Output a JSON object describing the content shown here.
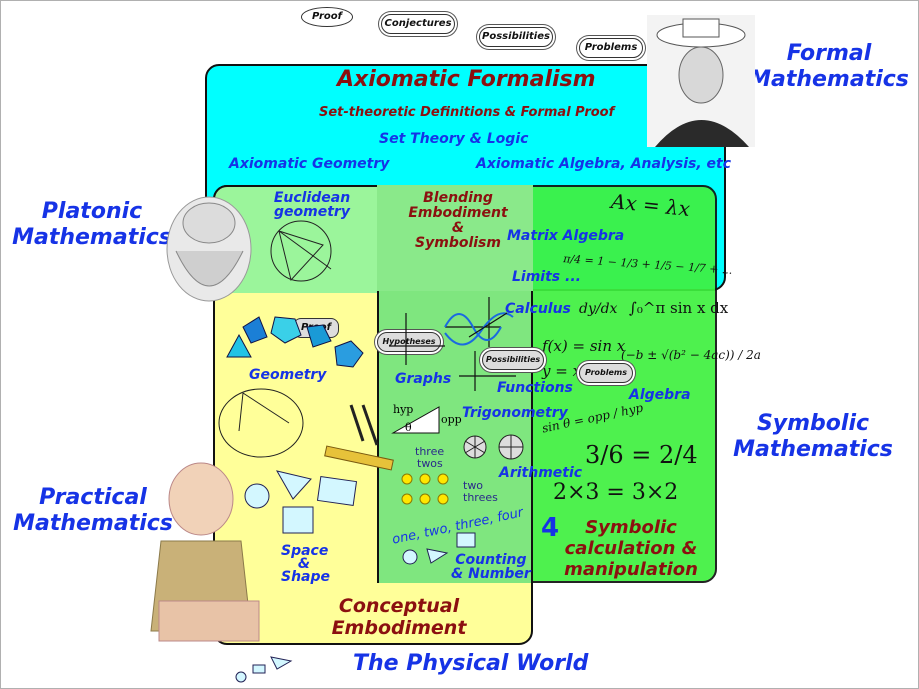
{
  "top_bubbles": [
    "Proof",
    "Conjectures",
    "Possibilities",
    "Problems"
  ],
  "worlds": {
    "formal": [
      "Formal",
      "Mathematics"
    ],
    "platonic": [
      "Platonic",
      "Mathematics"
    ],
    "symbolic": [
      "Symbolic",
      "Mathematics"
    ],
    "practical": [
      "Practical",
      "Mathematics"
    ],
    "physical": "The Physical World"
  },
  "formal_box": {
    "title": "Axiomatic Formalism",
    "line1": "Set-theoretic Definitions & Formal Proof",
    "line2": "Set Theory & Logic",
    "left": "Axiomatic Geometry",
    "right": "Axiomatic Algebra, Analysis, etc"
  },
  "blending": [
    "Blending",
    "Embodiment",
    "&",
    "Symbolism"
  ],
  "euclidean": [
    "Euclidean",
    "geometry"
  ],
  "symbolic_items": {
    "eigen": "Ax = λx",
    "matrix": "Matrix Algebra",
    "limits": "Limits ...",
    "series": "π/4 = 1 − 1/3 + 1/5 − 1/7 + ...",
    "calculus": "Calculus",
    "functions": "Functions",
    "algebra": "Algebra",
    "trig": "Trigonometry",
    "arithmetic": "Arithmetic",
    "counting": [
      "Counting",
      "& Number"
    ],
    "dydx": "dy/dx",
    "integral": "∫₀^π sin x dx",
    "fx": "f(x) = sin x",
    "yx": "y = x",
    "quad": "(−b ± √(b² − 4ac)) / 2a",
    "sine": "sin θ = opp / hyp",
    "fractions": "3/6 = 2/4",
    "product": "2×3 = 3×2",
    "four": "4",
    "one_two": "one, two, three, four",
    "three_twos": [
      "three",
      "twos"
    ],
    "two_threes": [
      "two",
      "threes"
    ],
    "hyp": "hyp",
    "opp": "opp",
    "theta": "θ"
  },
  "embodied_items": {
    "geometry": "Geometry",
    "graphs": "Graphs",
    "space_shape": [
      "Space",
      "&",
      "Shape"
    ],
    "proof_bubble": "Proof",
    "hypotheses_bubble": "Hypotheses",
    "possibilities_bubble": "Possibilities",
    "problems_bubble": "Problems"
  },
  "symbolic_calc": [
    "Symbolic",
    "calculation &",
    "manipulation"
  ],
  "conceptual": [
    "Conceptual",
    "Embodiment"
  ],
  "colors": {
    "formal_fill": "#00ffff",
    "platonic_fill": "#9bf59b",
    "symbolic_fill": "#3ff03f",
    "embodied_fill": "#ffff99",
    "blend_fill": "#7fe67f",
    "world_text": "#1633e6",
    "maroon_text": "#8b1010"
  }
}
